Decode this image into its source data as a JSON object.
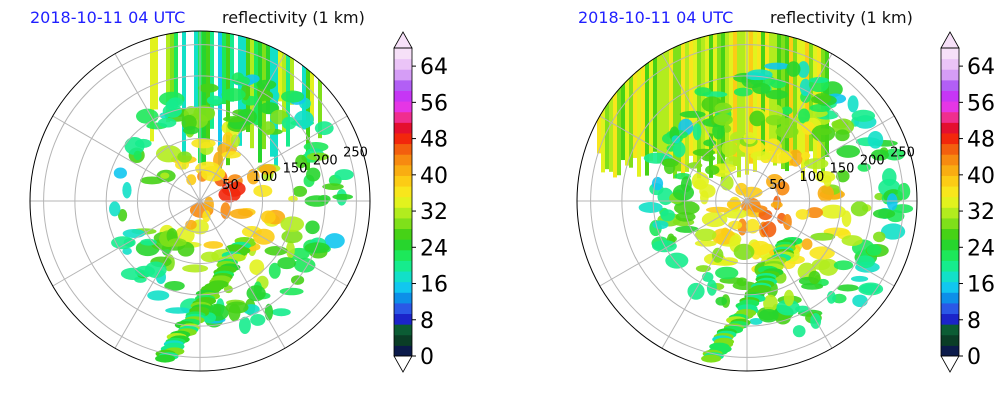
{
  "chart_data": [
    {
      "type": "heatmap",
      "projection": "polar (radar PPI)",
      "time_label": "2018-10-11 04 UTC",
      "title": "reflectivity (1 km)",
      "range_ring_labels": [
        "50",
        "100",
        "150",
        "200",
        "250"
      ],
      "range_rings": [
        50,
        100,
        150,
        200,
        250
      ],
      "colorbar": {
        "ticks": [
          "0",
          "8",
          "16",
          "24",
          "32",
          "40",
          "48",
          "56",
          "64"
        ],
        "min": 0,
        "max": 68,
        "extend": "both"
      }
    },
    {
      "type": "heatmap",
      "projection": "polar (radar PPI)",
      "time_label": "2018-10-11 04 UTC",
      "title": "reflectivity (1 km)",
      "range_ring_labels": [
        "50",
        "100",
        "150",
        "200",
        "250"
      ],
      "range_rings": [
        50,
        100,
        150,
        200,
        250
      ],
      "colorbar": {
        "ticks": [
          "0",
          "8",
          "16",
          "24",
          "32",
          "40",
          "48",
          "56",
          "64"
        ],
        "min": 0,
        "max": 68,
        "extend": "both"
      }
    }
  ],
  "colors": {
    "time_label": "#1f1fff",
    "colormap": [
      "#0b1a4a",
      "#0a3d26",
      "#0b5c34",
      "#1b24c9",
      "#2a58e6",
      "#0d8fe8",
      "#11c7ef",
      "#12e0c8",
      "#16ec8d",
      "#1de85a",
      "#27d52d",
      "#46d216",
      "#7fe01a",
      "#b2ec1e",
      "#e2f21e",
      "#f8e61c",
      "#fccc15",
      "#f9ad12",
      "#f78a10",
      "#f35f0e",
      "#f2270c",
      "#e40f2f",
      "#f02e8e",
      "#e536e5",
      "#c636f5",
      "#b25ff5",
      "#d59df6",
      "#ebc4f7",
      "#f6e0f8"
    ]
  }
}
